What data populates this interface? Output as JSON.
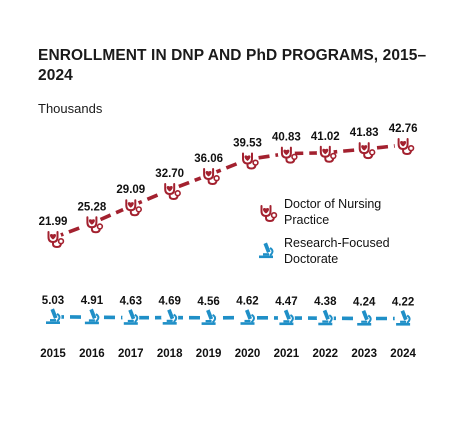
{
  "chart_data": {
    "type": "line",
    "title": "ENROLLMENT IN DNP AND PhD PROGRAMS, 2015–2024",
    "unit_label": "Thousands",
    "categories": [
      "2015",
      "2016",
      "2017",
      "2018",
      "2019",
      "2020",
      "2021",
      "2022",
      "2023",
      "2024"
    ],
    "series": [
      {
        "name": "Doctor of Nursing Practice",
        "legend_lines": [
          "Doctor of Nursing",
          "Practice"
        ],
        "icon": "stethoscope-icon",
        "color": "#a3212f",
        "values": [
          21.99,
          25.28,
          29.09,
          32.7,
          36.06,
          39.53,
          40.83,
          41.02,
          41.83,
          42.76
        ],
        "labels": [
          "21.99",
          "25.28",
          "29.09",
          "32.70",
          "36.06",
          "39.53",
          "40.83",
          "41.02",
          "41.83",
          "42.76"
        ]
      },
      {
        "name": "Research-Focused Doctorate",
        "legend_lines": [
          "Research-Focused",
          "Doctorate"
        ],
        "icon": "microscope-icon",
        "color": "#1f8fc7",
        "values": [
          5.03,
          4.91,
          4.63,
          4.69,
          4.56,
          4.62,
          4.47,
          4.38,
          4.24,
          4.22
        ],
        "labels": [
          "5.03",
          "4.91",
          "4.63",
          "4.69",
          "4.56",
          "4.62",
          "4.47",
          "4.38",
          "4.24",
          "4.22"
        ]
      }
    ],
    "line_style": "dashed",
    "grid": false,
    "legend_position": "right"
  }
}
